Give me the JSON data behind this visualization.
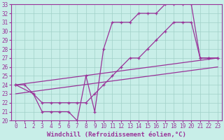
{
  "xlabel": "Windchill (Refroidissement éolien,°C)",
  "background_color": "#c8eee8",
  "grid_color": "#a0d0c8",
  "line_color": "#993399",
  "xlim": [
    -0.5,
    23.5
  ],
  "ylim": [
    20,
    33
  ],
  "xticks": [
    0,
    1,
    2,
    3,
    4,
    5,
    6,
    7,
    8,
    9,
    10,
    11,
    12,
    13,
    14,
    15,
    16,
    17,
    18,
    19,
    20,
    21,
    22,
    23
  ],
  "yticks": [
    20,
    21,
    22,
    23,
    24,
    25,
    26,
    27,
    28,
    29,
    30,
    31,
    32,
    33
  ],
  "line1_x": [
    0,
    1,
    2,
    3,
    4,
    5,
    6,
    7,
    8,
    9,
    10,
    11,
    12,
    13,
    14,
    15,
    16,
    17,
    18,
    19,
    20,
    21,
    22,
    23
  ],
  "line1_y": [
    24,
    24,
    23,
    21,
    21,
    21,
    21,
    20,
    25,
    21,
    28,
    31,
    31,
    31,
    32,
    32,
    32,
    33,
    33,
    33,
    33,
    27,
    27,
    27
  ],
  "line2_x": [
    0,
    2,
    3,
    4,
    5,
    6,
    7,
    8,
    9,
    10,
    11,
    12,
    13,
    14,
    15,
    16,
    17,
    18,
    19,
    20,
    21,
    22,
    23
  ],
  "line2_y": [
    24,
    23,
    22,
    22,
    22,
    22,
    22,
    22,
    23,
    24,
    25,
    26,
    27,
    27,
    28,
    29,
    30,
    31,
    31,
    31,
    27,
    27,
    27
  ],
  "line3_x": [
    0,
    23
  ],
  "line3_y": [
    24,
    27
  ],
  "line4_x": [
    0,
    23
  ],
  "line4_y": [
    23,
    26
  ],
  "tick_fontsize": 5.5,
  "label_fontsize": 6.5
}
